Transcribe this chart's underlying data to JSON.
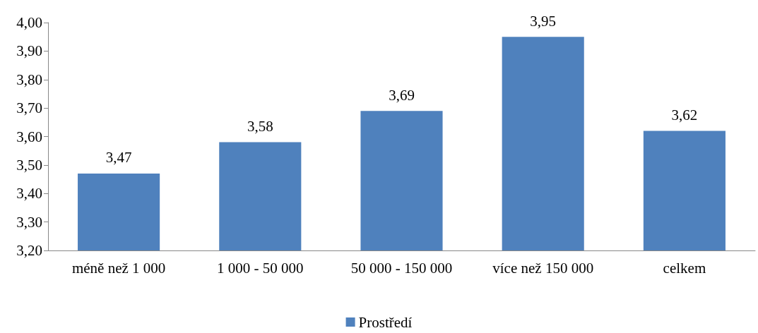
{
  "chart_data": {
    "type": "bar",
    "categories": [
      "méně než 1 000",
      "1 000 - 50 000",
      "50 000 - 150 000",
      "více než 150 000",
      "celkem"
    ],
    "series": [
      {
        "name": "Prostředí",
        "color": "#4f81bd",
        "values": [
          3.47,
          3.58,
          3.69,
          3.95,
          3.62
        ],
        "value_labels": [
          "3,47",
          "3,58",
          "3,69",
          "3,95",
          "3,62"
        ]
      }
    ],
    "ylim": [
      3.2,
      4.0
    ],
    "yticks": [
      {
        "value": 3.2,
        "label": "3,20"
      },
      {
        "value": 3.3,
        "label": "3,30"
      },
      {
        "value": 3.4,
        "label": "3,40"
      },
      {
        "value": 3.5,
        "label": "3,50"
      },
      {
        "value": 3.6,
        "label": "3,60"
      },
      {
        "value": 3.7,
        "label": "3,70"
      },
      {
        "value": 3.8,
        "label": "3,80"
      },
      {
        "value": 3.9,
        "label": "3,90"
      },
      {
        "value": 4.0,
        "label": "4,00"
      }
    ],
    "grid": false,
    "legend": "bottom"
  }
}
